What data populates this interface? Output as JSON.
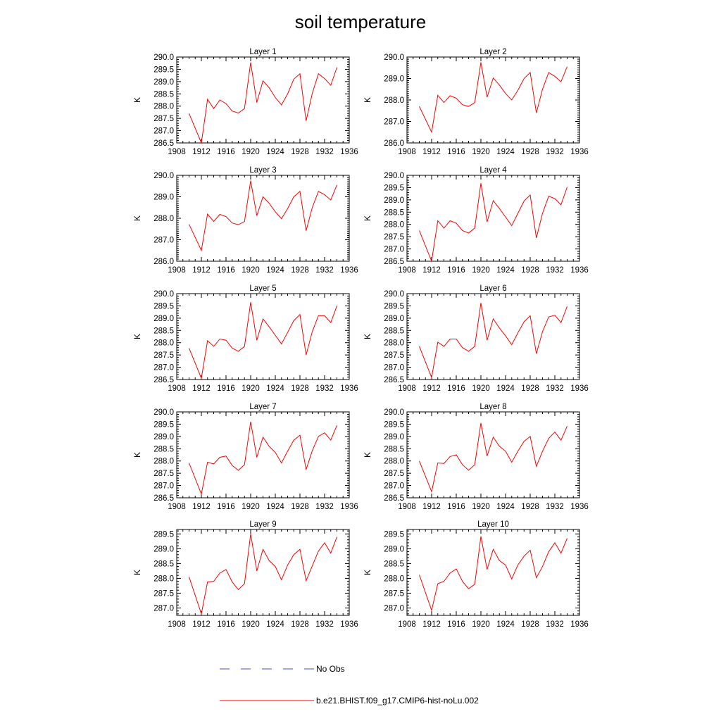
{
  "figure": {
    "title": "soil temperature"
  },
  "legend": {
    "items": [
      {
        "label": "No Obs",
        "color": "#4a4acc",
        "style": "dashed"
      },
      {
        "label": "b.e21.BHIST.f09_g17.CMIP6-hist-noLu.002",
        "color": "#ff0000",
        "style": "solid"
      }
    ]
  },
  "chart_data": [
    {
      "type": "line",
      "title": "Layer 1",
      "ylabel": "K",
      "xlim": [
        1908,
        1936
      ],
      "ylim": [
        286.5,
        290.0
      ],
      "xticks": [
        1908,
        1912,
        1916,
        1920,
        1924,
        1928,
        1932,
        1936
      ],
      "yticks": [
        286.5,
        287.0,
        287.5,
        288.0,
        288.5,
        289.0,
        289.5,
        290.0
      ],
      "ytick_labels": [
        "286.5",
        "287.0",
        "287.5",
        "288.0",
        "288.5",
        "289.0",
        "289.5",
        "290.0"
      ],
      "x": [
        1910,
        1912,
        1913,
        1914,
        1915,
        1916,
        1917,
        1918,
        1919,
        1920,
        1921,
        1922,
        1923,
        1924,
        1925,
        1926,
        1927,
        1928,
        1929,
        1930,
        1931,
        1932,
        1933,
        1934
      ],
      "series": [
        {
          "name": "b.e21.BHIST.f09_g17.CMIP6-hist-noLu.002",
          "color": "#ff0000",
          "values": [
            287.7,
            286.5,
            288.28,
            287.9,
            288.25,
            288.1,
            287.8,
            287.72,
            287.9,
            289.78,
            288.15,
            289.03,
            288.75,
            288.35,
            288.05,
            288.5,
            289.1,
            289.32,
            287.4,
            288.52,
            289.32,
            289.12,
            288.85,
            289.58
          ]
        }
      ]
    },
    {
      "type": "line",
      "title": "Layer 2",
      "ylabel": "K",
      "xlim": [
        1908,
        1936
      ],
      "ylim": [
        286.0,
        290.0
      ],
      "xticks": [
        1908,
        1912,
        1916,
        1920,
        1924,
        1928,
        1932,
        1936
      ],
      "yticks": [
        286.0,
        287.0,
        288.0,
        289.0,
        290.0
      ],
      "ytick_labels": [
        "286.0",
        "287.0",
        "288.0",
        "289.0",
        "290.0"
      ],
      "x": [
        1910,
        1912,
        1913,
        1914,
        1915,
        1916,
        1917,
        1918,
        1919,
        1920,
        1921,
        1922,
        1923,
        1924,
        1925,
        1926,
        1927,
        1928,
        1929,
        1930,
        1931,
        1932,
        1933,
        1934
      ],
      "series": [
        {
          "name": "b.e21.BHIST.f09_g17.CMIP6-hist-noLu.002",
          "color": "#ff0000",
          "values": [
            287.7,
            286.5,
            288.22,
            287.88,
            288.2,
            288.08,
            287.78,
            287.7,
            287.88,
            289.75,
            288.13,
            289.02,
            288.7,
            288.3,
            288.0,
            288.45,
            289.0,
            289.28,
            287.4,
            288.5,
            289.28,
            289.1,
            288.85,
            289.55
          ]
        }
      ]
    },
    {
      "type": "line",
      "title": "Layer 3",
      "ylabel": "K",
      "xlim": [
        1908,
        1936
      ],
      "ylim": [
        286.0,
        290.0
      ],
      "xticks": [
        1908,
        1912,
        1916,
        1920,
        1924,
        1928,
        1932,
        1936
      ],
      "yticks": [
        286.0,
        287.0,
        288.0,
        289.0,
        290.0
      ],
      "ytick_labels": [
        "286.0",
        "287.0",
        "288.0",
        "289.0",
        "290.0"
      ],
      "x": [
        1910,
        1912,
        1913,
        1914,
        1915,
        1916,
        1917,
        1918,
        1919,
        1920,
        1921,
        1922,
        1923,
        1924,
        1925,
        1926,
        1927,
        1928,
        1929,
        1930,
        1931,
        1932,
        1933,
        1934
      ],
      "series": [
        {
          "name": "b.e21.BHIST.f09_g17.CMIP6-hist-noLu.002",
          "color": "#ff0000",
          "values": [
            287.72,
            286.5,
            288.2,
            287.85,
            288.18,
            288.08,
            287.78,
            287.7,
            287.85,
            289.75,
            288.12,
            289.0,
            288.7,
            288.3,
            287.98,
            288.45,
            289.0,
            289.25,
            287.42,
            288.5,
            289.25,
            289.1,
            288.85,
            289.55
          ]
        }
      ]
    },
    {
      "type": "line",
      "title": "Layer 4",
      "ylabel": "K",
      "xlim": [
        1908,
        1936
      ],
      "ylim": [
        286.5,
        290.0
      ],
      "xticks": [
        1908,
        1912,
        1916,
        1920,
        1924,
        1928,
        1932,
        1936
      ],
      "yticks": [
        286.5,
        287.0,
        287.5,
        288.0,
        288.5,
        289.0,
        289.5,
        290.0
      ],
      "ytick_labels": [
        "286.5",
        "287.0",
        "287.5",
        "288.0",
        "288.5",
        "289.0",
        "289.5",
        "290.0"
      ],
      "x": [
        1910,
        1912,
        1913,
        1914,
        1915,
        1916,
        1917,
        1918,
        1919,
        1920,
        1921,
        1922,
        1923,
        1924,
        1925,
        1926,
        1927,
        1928,
        1929,
        1930,
        1931,
        1932,
        1933,
        1934
      ],
      "series": [
        {
          "name": "b.e21.BHIST.f09_g17.CMIP6-hist-noLu.002",
          "color": "#ff0000",
          "values": [
            287.75,
            286.5,
            288.15,
            287.85,
            288.15,
            288.05,
            287.75,
            287.65,
            287.85,
            289.68,
            288.1,
            288.97,
            288.65,
            288.3,
            287.95,
            288.45,
            288.95,
            289.2,
            287.45,
            288.45,
            289.15,
            289.05,
            288.8,
            289.52
          ]
        }
      ]
    },
    {
      "type": "line",
      "title": "Layer 5",
      "ylabel": "K",
      "xlim": [
        1908,
        1936
      ],
      "ylim": [
        286.5,
        290.0
      ],
      "xticks": [
        1908,
        1912,
        1916,
        1920,
        1924,
        1928,
        1932,
        1936
      ],
      "yticks": [
        286.5,
        287.0,
        287.5,
        288.0,
        288.5,
        289.0,
        289.5,
        290.0
      ],
      "ytick_labels": [
        "286.5",
        "287.0",
        "287.5",
        "288.0",
        "288.5",
        "289.0",
        "289.5",
        "290.0"
      ],
      "x": [
        1910,
        1912,
        1913,
        1914,
        1915,
        1916,
        1917,
        1918,
        1919,
        1920,
        1921,
        1922,
        1923,
        1924,
        1925,
        1926,
        1927,
        1928,
        1929,
        1930,
        1931,
        1932,
        1933,
        1934
      ],
      "series": [
        {
          "name": "b.e21.BHIST.f09_g17.CMIP6-hist-noLu.002",
          "color": "#ff0000",
          "values": [
            287.78,
            286.55,
            288.08,
            287.85,
            288.15,
            288.1,
            287.78,
            287.65,
            287.85,
            289.65,
            288.1,
            288.97,
            288.65,
            288.3,
            287.95,
            288.42,
            288.9,
            289.15,
            287.5,
            288.45,
            289.1,
            289.1,
            288.82,
            289.5
          ]
        }
      ]
    },
    {
      "type": "line",
      "title": "Layer 6",
      "ylabel": "K",
      "xlim": [
        1908,
        1936
      ],
      "ylim": [
        286.5,
        290.0
      ],
      "xticks": [
        1908,
        1912,
        1916,
        1920,
        1924,
        1928,
        1932,
        1936
      ],
      "yticks": [
        286.5,
        287.0,
        287.5,
        288.0,
        288.5,
        289.0,
        289.5,
        290.0
      ],
      "ytick_labels": [
        "286.5",
        "287.0",
        "287.5",
        "288.0",
        "288.5",
        "289.0",
        "289.5",
        "290.0"
      ],
      "x": [
        1910,
        1912,
        1913,
        1914,
        1915,
        1916,
        1917,
        1918,
        1919,
        1920,
        1921,
        1922,
        1923,
        1924,
        1925,
        1926,
        1927,
        1928,
        1929,
        1930,
        1931,
        1932,
        1933,
        1934
      ],
      "series": [
        {
          "name": "b.e21.BHIST.f09_g17.CMIP6-hist-noLu.002",
          "color": "#ff0000",
          "values": [
            287.85,
            286.58,
            288.02,
            287.85,
            288.15,
            288.15,
            287.8,
            287.65,
            287.85,
            289.62,
            288.1,
            288.97,
            288.6,
            288.28,
            287.92,
            288.4,
            288.85,
            289.1,
            287.55,
            288.45,
            289.05,
            289.12,
            288.82,
            289.48
          ]
        }
      ]
    },
    {
      "type": "line",
      "title": "Layer 7",
      "ylabel": "K",
      "xlim": [
        1908,
        1936
      ],
      "ylim": [
        286.5,
        290.0
      ],
      "xticks": [
        1908,
        1912,
        1916,
        1920,
        1924,
        1928,
        1932,
        1936
      ],
      "yticks": [
        286.5,
        287.0,
        287.5,
        288.0,
        288.5,
        289.0,
        289.5,
        290.0
      ],
      "ytick_labels": [
        "286.5",
        "287.0",
        "287.5",
        "288.0",
        "288.5",
        "289.0",
        "289.5",
        "290.0"
      ],
      "x": [
        1910,
        1912,
        1913,
        1914,
        1915,
        1916,
        1917,
        1918,
        1919,
        1920,
        1921,
        1922,
        1923,
        1924,
        1925,
        1926,
        1927,
        1928,
        1929,
        1930,
        1931,
        1932,
        1933,
        1934
      ],
      "series": [
        {
          "name": "b.e21.BHIST.f09_g17.CMIP6-hist-noLu.002",
          "color": "#ff0000",
          "values": [
            287.92,
            286.65,
            287.95,
            287.88,
            288.15,
            288.2,
            287.82,
            287.62,
            287.85,
            289.6,
            288.15,
            288.97,
            288.6,
            288.35,
            287.92,
            288.4,
            288.85,
            289.05,
            287.65,
            288.42,
            289.0,
            289.15,
            288.85,
            289.45
          ]
        }
      ]
    },
    {
      "type": "line",
      "title": "Layer 8",
      "ylabel": "K",
      "xlim": [
        1908,
        1936
      ],
      "ylim": [
        286.5,
        290.0
      ],
      "xticks": [
        1908,
        1912,
        1916,
        1920,
        1924,
        1928,
        1932,
        1936
      ],
      "yticks": [
        286.5,
        287.0,
        287.5,
        288.0,
        288.5,
        289.0,
        289.5,
        290.0
      ],
      "ytick_labels": [
        "286.5",
        "287.0",
        "287.5",
        "288.0",
        "288.5",
        "289.0",
        "289.5",
        "290.0"
      ],
      "x": [
        1910,
        1912,
        1913,
        1914,
        1915,
        1916,
        1917,
        1918,
        1919,
        1920,
        1921,
        1922,
        1923,
        1924,
        1925,
        1926,
        1927,
        1928,
        1929,
        1930,
        1931,
        1932,
        1933,
        1934
      ],
      "series": [
        {
          "name": "b.e21.BHIST.f09_g17.CMIP6-hist-noLu.002",
          "color": "#ff0000",
          "values": [
            288.0,
            286.75,
            287.92,
            287.9,
            288.18,
            288.25,
            287.85,
            287.62,
            287.85,
            289.55,
            288.2,
            288.97,
            288.6,
            288.4,
            287.95,
            288.4,
            288.8,
            289.0,
            287.78,
            288.4,
            288.92,
            289.18,
            288.85,
            289.42
          ]
        }
      ]
    },
    {
      "type": "line",
      "title": "Layer 9",
      "ylabel": "K",
      "xlim": [
        1908,
        1936
      ],
      "ylim": [
        286.75,
        289.65
      ],
      "xticks": [
        1908,
        1912,
        1916,
        1920,
        1924,
        1928,
        1932,
        1936
      ],
      "yticks": [
        287.0,
        287.5,
        288.0,
        288.5,
        289.0,
        289.5
      ],
      "ytick_labels": [
        "287.0",
        "287.5",
        "288.0",
        "288.5",
        "289.0",
        "289.5"
      ],
      "x": [
        1910,
        1912,
        1913,
        1914,
        1915,
        1916,
        1917,
        1918,
        1919,
        1920,
        1921,
        1922,
        1923,
        1924,
        1925,
        1926,
        1927,
        1928,
        1929,
        1930,
        1931,
        1932,
        1933,
        1934
      ],
      "series": [
        {
          "name": "b.e21.BHIST.f09_g17.CMIP6-hist-noLu.002",
          "color": "#ff0000",
          "values": [
            288.05,
            286.8,
            287.88,
            287.9,
            288.18,
            288.3,
            287.88,
            287.62,
            287.82,
            289.5,
            288.25,
            288.98,
            288.6,
            288.4,
            287.95,
            288.45,
            288.8,
            288.98,
            287.92,
            288.42,
            288.92,
            289.2,
            288.85,
            289.4
          ]
        }
      ]
    },
    {
      "type": "line",
      "title": "Layer 10",
      "ylabel": "K",
      "xlim": [
        1908,
        1936
      ],
      "ylim": [
        286.75,
        289.65
      ],
      "xticks": [
        1908,
        1912,
        1916,
        1920,
        1924,
        1928,
        1932,
        1936
      ],
      "yticks": [
        287.0,
        287.5,
        288.0,
        288.5,
        289.0,
        289.5
      ],
      "ytick_labels": [
        "287.0",
        "287.5",
        "288.0",
        "288.5",
        "289.0",
        "289.5"
      ],
      "x": [
        1910,
        1912,
        1913,
        1914,
        1915,
        1916,
        1917,
        1918,
        1919,
        1920,
        1921,
        1922,
        1923,
        1924,
        1925,
        1926,
        1927,
        1928,
        1929,
        1930,
        1931,
        1932,
        1933,
        1934
      ],
      "series": [
        {
          "name": "b.e21.BHIST.f09_g17.CMIP6-hist-noLu.002",
          "color": "#ff0000",
          "values": [
            288.12,
            286.92,
            287.82,
            287.9,
            288.18,
            288.32,
            287.9,
            287.65,
            287.8,
            289.42,
            288.3,
            288.98,
            288.6,
            288.45,
            287.98,
            288.45,
            288.75,
            288.95,
            288.02,
            288.4,
            288.9,
            289.2,
            288.85,
            289.35
          ]
        }
      ]
    }
  ]
}
